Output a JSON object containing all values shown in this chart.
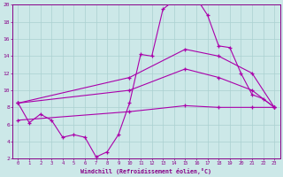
{
  "xlabel": "Windchill (Refroidissement éolien,°C)",
  "background_color": "#cce8e8",
  "grid_color": "#aad0d0",
  "line_color": "#aa00aa",
  "tick_color": "#880088",
  "spine_color": "#880088",
  "xlim": [
    -0.5,
    23.5
  ],
  "ylim": [
    2,
    20
  ],
  "xticks": [
    0,
    1,
    2,
    3,
    4,
    5,
    6,
    7,
    8,
    9,
    10,
    11,
    12,
    13,
    14,
    15,
    16,
    17,
    18,
    19,
    20,
    21,
    22,
    23
  ],
  "yticks": [
    2,
    4,
    6,
    8,
    10,
    12,
    14,
    16,
    18,
    20
  ],
  "line1_x": [
    0,
    1,
    2,
    3,
    4,
    5,
    6,
    7,
    8,
    9,
    10,
    11,
    12,
    13,
    14,
    15,
    16,
    17,
    18,
    19,
    20,
    21,
    22,
    23
  ],
  "line1_y": [
    8.5,
    6.2,
    7.2,
    6.5,
    4.5,
    4.8,
    4.5,
    2.2,
    2.8,
    4.8,
    8.5,
    14.2,
    14.0,
    19.5,
    20.5,
    20.8,
    20.8,
    18.8,
    15.2,
    15.0,
    12.0,
    9.5,
    9.0,
    8.0
  ],
  "line2_x": [
    0,
    23
  ],
  "line2_y": [
    8.5,
    8.0
  ],
  "line3_x": [
    0,
    23
  ],
  "line3_y": [
    8.5,
    8.0
  ],
  "line4_x": [
    0,
    23
  ],
  "line4_y": [
    6.5,
    8.0
  ],
  "line2_mid_x": [
    0,
    10,
    15,
    18,
    21,
    23
  ],
  "line2_mid_y": [
    8.5,
    11.5,
    14.8,
    14.0,
    12.0,
    8.0
  ],
  "line3_mid_x": [
    0,
    10,
    15,
    18,
    21,
    23
  ],
  "line3_mid_y": [
    8.5,
    10.0,
    12.5,
    11.5,
    10.0,
    8.0
  ],
  "line4_mid_x": [
    0,
    10,
    15,
    18,
    21,
    23
  ],
  "line4_mid_y": [
    6.5,
    7.5,
    8.2,
    8.0,
    8.0,
    8.0
  ]
}
